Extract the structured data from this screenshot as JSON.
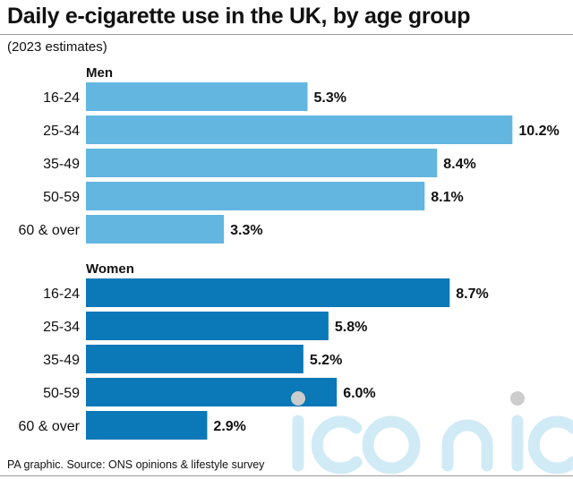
{
  "title": "Daily e-cigarette use in the UK, by age group",
  "subtitle": "(2023 estimates)",
  "source": "PA graphic. Source: ONS opinions & lifestyle survey",
  "watermark": "iconic",
  "colors": {
    "men": "#62b6e0",
    "women": "#0b78b8",
    "text": "#111111",
    "watermark": "#cde9f6"
  },
  "chart_data": {
    "type": "bar",
    "orientation": "horizontal",
    "unit": "%",
    "groups": [
      {
        "name": "Men",
        "categories": [
          "16-24",
          "25-34",
          "35-49",
          "50-59",
          "60 & over"
        ],
        "values": [
          5.3,
          10.2,
          8.4,
          8.1,
          3.3
        ],
        "labels": [
          "5.3%",
          "10.2%",
          "8.4%",
          "8.1%",
          "3.3%"
        ]
      },
      {
        "name": "Women",
        "categories": [
          "16-24",
          "25-34",
          "35-49",
          "50-59",
          "60 & over"
        ],
        "values": [
          8.7,
          5.8,
          5.2,
          6.0,
          2.9
        ],
        "labels": [
          "8.7%",
          "5.8%",
          "5.2%",
          "6.0%",
          "2.9%"
        ]
      }
    ]
  }
}
